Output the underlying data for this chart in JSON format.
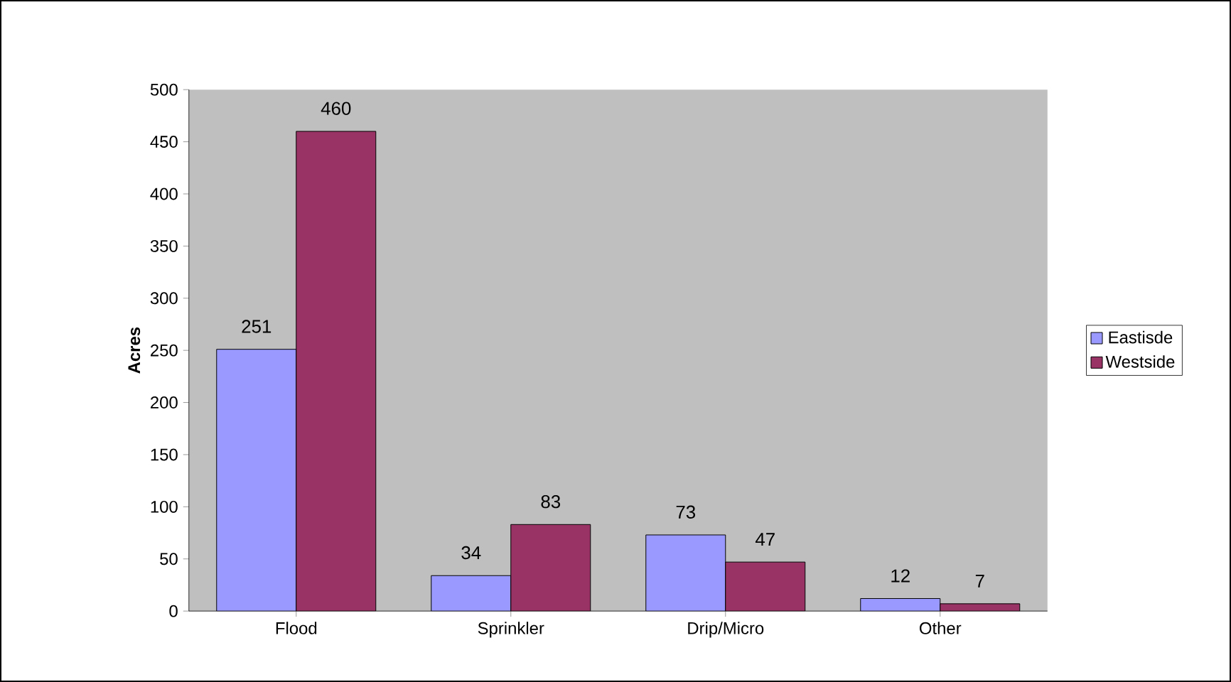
{
  "chart_data": {
    "type": "bar",
    "ylabel": "Acres",
    "categories": [
      "Flood",
      "Sprinkler",
      "Drip/Micro",
      "Other"
    ],
    "series": [
      {
        "name": "Eastisde",
        "color": "#9999ff",
        "values": [
          251,
          34,
          73,
          12
        ]
      },
      {
        "name": "Westside",
        "color": "#993366",
        "values": [
          460,
          83,
          47,
          7
        ]
      }
    ],
    "ylim": [
      0,
      500
    ],
    "yticks": [
      0,
      50,
      100,
      150,
      200,
      250,
      300,
      350,
      400,
      450,
      500
    ],
    "data_labels": true,
    "legend": "right",
    "grid": false
  }
}
